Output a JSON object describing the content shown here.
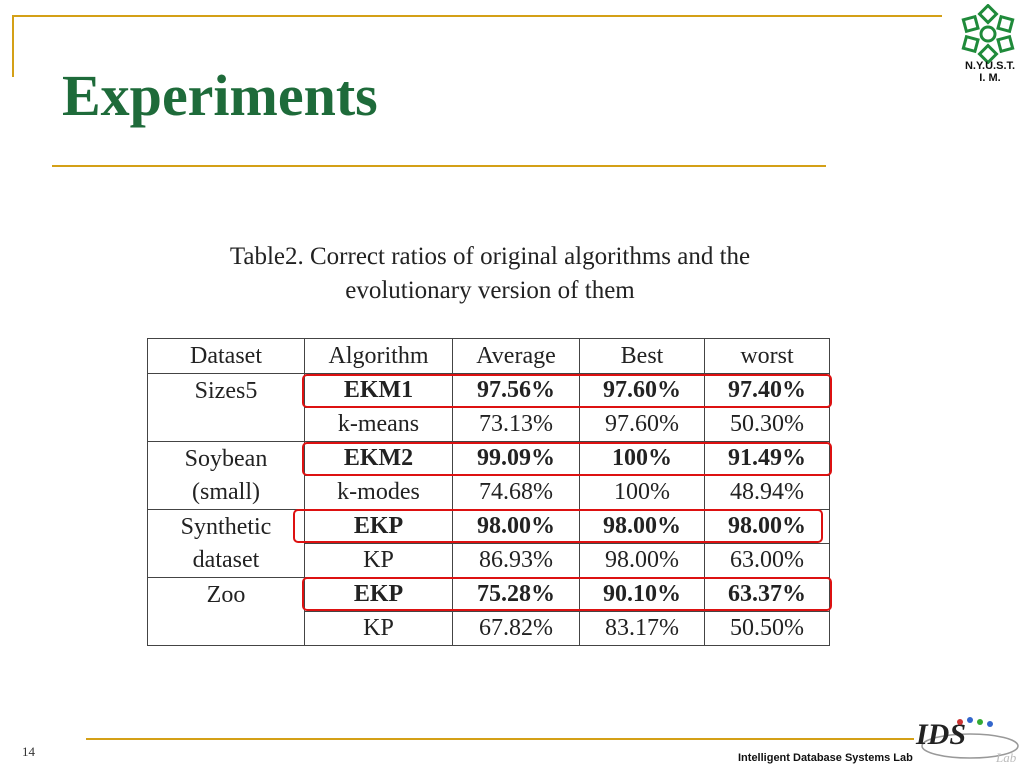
{
  "slide": {
    "title": "Experiments",
    "logo_text": "N.Y.U.S.T.\nI. M.",
    "page_number": "14",
    "footer_text": "Intelligent Database Systems Lab",
    "accent_color": "#d4a017",
    "title_color": "#1e6b3a",
    "highlight_color": "#dd1111"
  },
  "table": {
    "caption_line1": "Table2. Correct ratios of original algorithms and the",
    "caption_line2": "evolutionary version of them",
    "headers": [
      "Dataset",
      "Algorithm",
      "Average",
      "Best",
      "worst"
    ],
    "groups": [
      {
        "dataset": "Sizes5",
        "rows": [
          {
            "algorithm": "EKM1",
            "average": "97.56%",
            "best": "97.60%",
            "worst": "97.40%",
            "highlighted": true
          },
          {
            "algorithm": "k-means",
            "average": "73.13%",
            "best": "97.60%",
            "worst": "50.30%",
            "highlighted": false
          }
        ]
      },
      {
        "dataset": "Soybean\n(small)",
        "rows": [
          {
            "algorithm": "EKM2",
            "average": "99.09%",
            "best": "100%",
            "worst": "91.49%",
            "highlighted": true
          },
          {
            "algorithm": "k-modes",
            "average": "74.68%",
            "best": "100%",
            "worst": "48.94%",
            "highlighted": false
          }
        ]
      },
      {
        "dataset": "Synthetic\ndataset",
        "rows": [
          {
            "algorithm": "EKP",
            "average": "98.00%",
            "best": "98.00%",
            "worst": "98.00%",
            "highlighted": true
          },
          {
            "algorithm": "KP",
            "average": "86.93%",
            "best": "98.00%",
            "worst": "63.00%",
            "highlighted": false
          }
        ]
      },
      {
        "dataset": "Zoo",
        "rows": [
          {
            "algorithm": "EKP",
            "average": "75.28%",
            "best": "90.10%",
            "worst": "63.37%",
            "highlighted": true
          },
          {
            "algorithm": "KP",
            "average": "67.82%",
            "best": "83.17%",
            "worst": "50.50%",
            "highlighted": false
          }
        ]
      }
    ]
  }
}
